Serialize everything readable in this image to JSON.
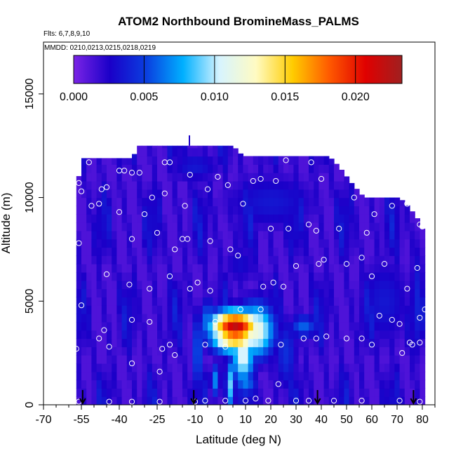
{
  "chart_data": {
    "type": "heatmap",
    "title": "ATOM2 Northbound BromineMass_PALMS",
    "flights_label": "Flts: 6,7,8,9,10",
    "dates_label": "MMDD: 0210,0213,0215,0218,0219",
    "xlabel": "Latitude (deg N)",
    "ylabel": "Altitude (m)",
    "xlim": [
      -70,
      85
    ],
    "ylim": [
      0,
      17500
    ],
    "x_ticks": [
      -70,
      -55,
      -40,
      -25,
      -10,
      0,
      10,
      20,
      30,
      40,
      50,
      60,
      70,
      80
    ],
    "y_ticks": [
      0,
      5000,
      10000,
      15000
    ],
    "colorbar": {
      "range": [
        0,
        0.0233
      ],
      "ticks": [
        0.0,
        0.005,
        0.01,
        0.015,
        0.02
      ],
      "tick_labels": [
        "0.000",
        "0.005",
        "0.010",
        "0.015",
        "0.020"
      ],
      "colors": [
        "#7b24e6",
        "#1a00c8",
        "#0a3fe0",
        "#00b0ff",
        "#d7f4ff",
        "#fffbc2",
        "#ffcc00",
        "#ff5a00",
        "#e00000",
        "#a02020"
      ]
    },
    "legend": "none",
    "grid": false,
    "field": {
      "background_value": 0.0012,
      "top_boundary": [
        {
          "lat": -57,
          "alt": 10600
        },
        {
          "lat": -54,
          "alt": 11900
        },
        {
          "lat": -35,
          "alt": 11900
        },
        {
          "lat": -32,
          "alt": 12500
        },
        {
          "lat": 5,
          "alt": 12500
        },
        {
          "lat": 9,
          "alt": 12000
        },
        {
          "lat": 43,
          "alt": 12000
        },
        {
          "lat": 47,
          "alt": 11500
        },
        {
          "lat": 52,
          "alt": 10700
        },
        {
          "lat": 57,
          "alt": 10000
        },
        {
          "lat": 71,
          "alt": 10000
        },
        {
          "lat": 75,
          "alt": 9500
        },
        {
          "lat": 78,
          "alt": 9000
        },
        {
          "lat": 80,
          "alt": 8500
        }
      ],
      "features": [
        {
          "lat": 6,
          "alt": 3800,
          "dlat": 10,
          "dalt": 800,
          "value": 0.022
        },
        {
          "lat": 6,
          "alt": 3400,
          "dlat": 10,
          "dalt": 900,
          "value": 0.018
        },
        {
          "lat": 14,
          "alt": 3600,
          "dlat": 8,
          "dalt": 1400,
          "value": 0.012
        },
        {
          "lat": 9,
          "alt": 2400,
          "dlat": 5,
          "dalt": 1500,
          "value": 0.011
        },
        {
          "lat": 4,
          "alt": 1000,
          "dlat": 2,
          "dalt": 1400,
          "value": 0.009
        },
        {
          "lat": -5,
          "alt": 4000,
          "dlat": 3,
          "dalt": 1200,
          "value": 0.007
        },
        {
          "lat": -9,
          "alt": 2600,
          "dlat": 2.5,
          "dalt": 2200,
          "value": 0.006
        },
        {
          "lat": 33,
          "alt": 3800,
          "dlat": 6,
          "dalt": 600,
          "value": 0.006
        },
        {
          "lat": 26,
          "alt": 2500,
          "dlat": 5,
          "dalt": 2000,
          "value": 0.0045
        },
        {
          "lat": -10,
          "alt": 11500,
          "dlat": 12,
          "dalt": 900,
          "value": 0.0035
        },
        {
          "lat": 20,
          "alt": 9800,
          "dlat": 22,
          "dalt": 1600,
          "value": 0.0035
        },
        {
          "lat": 8,
          "alt": 6800,
          "dlat": 8,
          "dalt": 1200,
          "value": 0.003
        },
        {
          "lat": 65,
          "alt": 5000,
          "dlat": 12,
          "dalt": 2500,
          "value": 0.0035
        },
        {
          "lat": 78,
          "alt": 5000,
          "dlat": 3,
          "dalt": 3500,
          "value": 0.004
        },
        {
          "lat": -62,
          "alt": 8500,
          "dlat": 4,
          "dalt": 2500,
          "value": 0.003
        },
        {
          "lat": 10,
          "alt": 1000,
          "dlat": 5,
          "dalt": 600,
          "value": 0.0065
        },
        {
          "lat": -2,
          "alt": 1200,
          "dlat": 2,
          "dalt": 900,
          "value": 0.007
        }
      ]
    },
    "sample_points": [
      [
        -66,
        10100
      ],
      [
        -63,
        10500
      ],
      [
        -65,
        11000
      ],
      [
        -56,
        10700
      ],
      [
        -52,
        11700
      ],
      [
        -48,
        9700
      ],
      [
        -47,
        10400
      ],
      [
        -45,
        10500
      ],
      [
        -40,
        11300
      ],
      [
        -38,
        11300
      ],
      [
        -35,
        11200
      ],
      [
        -32,
        11200
      ],
      [
        -22,
        11700
      ],
      [
        -20,
        11700
      ],
      [
        -14,
        9600
      ],
      [
        -5,
        10400
      ],
      [
        -15,
        8000
      ],
      [
        -25,
        8300
      ],
      [
        -35,
        8000
      ],
      [
        -56,
        7800
      ],
      [
        -62,
        7800
      ],
      [
        -67,
        6400
      ],
      [
        -51,
        9600
      ],
      [
        -30,
        9200
      ],
      [
        -4,
        7900
      ],
      [
        9,
        9700
      ],
      [
        13,
        10800
      ],
      [
        16,
        10900
      ],
      [
        22,
        10800
      ],
      [
        26,
        11800
      ],
      [
        36,
        11700
      ],
      [
        40,
        10900
      ],
      [
        53,
        10000
      ],
      [
        20,
        8500
      ],
      [
        27,
        8500
      ],
      [
        35,
        8700
      ],
      [
        38,
        8400
      ],
      [
        47,
        8500
      ],
      [
        58,
        8300
      ],
      [
        61,
        9200
      ],
      [
        68,
        9600
      ],
      [
        74,
        9700
      ],
      [
        79,
        8700
      ],
      [
        -45,
        6300
      ],
      [
        -36,
        5800
      ],
      [
        -28,
        5600
      ],
      [
        -20,
        6200
      ],
      [
        -12,
        5600
      ],
      [
        -9,
        5900
      ],
      [
        -4,
        5500
      ],
      [
        4,
        7500
      ],
      [
        7,
        7200
      ],
      [
        17,
        5700
      ],
      [
        21,
        5900
      ],
      [
        25,
        5700
      ],
      [
        30,
        6700
      ],
      [
        39,
        6800
      ],
      [
        41,
        7000
      ],
      [
        50,
        6800
      ],
      [
        56,
        7100
      ],
      [
        60,
        6200
      ],
      [
        65,
        6800
      ],
      [
        74,
        5600
      ],
      [
        78,
        6600
      ],
      [
        80,
        8600
      ],
      [
        -55,
        4800
      ],
      [
        -46,
        3600
      ],
      [
        -35,
        4100
      ],
      [
        -28,
        4000
      ],
      [
        -23,
        2700
      ],
      [
        -20,
        2900
      ],
      [
        -18,
        2400
      ],
      [
        -6,
        2900
      ],
      [
        -2,
        4000
      ],
      [
        2,
        2800
      ],
      [
        8,
        4600
      ],
      [
        16,
        4600
      ],
      [
        24,
        2900
      ],
      [
        33,
        3200
      ],
      [
        38,
        3200
      ],
      [
        42,
        3300
      ],
      [
        50,
        3200
      ],
      [
        56,
        3200
      ],
      [
        60,
        2900
      ],
      [
        63,
        4300
      ],
      [
        68,
        4100
      ],
      [
        71,
        3900
      ],
      [
        75,
        3000
      ],
      [
        79,
        3000
      ],
      [
        79,
        4200
      ],
      [
        81,
        4600
      ],
      [
        -63,
        2800
      ],
      [
        -60,
        3000
      ],
      [
        -57,
        2700
      ],
      [
        -48,
        3200
      ],
      [
        -44,
        2800
      ],
      [
        -35,
        2000
      ],
      [
        -24,
        1600
      ],
      [
        2,
        200
      ],
      [
        10,
        200
      ],
      [
        14,
        300
      ],
      [
        19,
        200
      ],
      [
        23,
        1000
      ],
      [
        30,
        200
      ],
      [
        35,
        200
      ],
      [
        45,
        200
      ],
      [
        56,
        200
      ],
      [
        -64,
        150
      ],
      [
        -56,
        150
      ],
      [
        -44,
        150
      ],
      [
        -35,
        150
      ],
      [
        -24,
        150
      ],
      [
        -10,
        150
      ],
      [
        -6,
        200
      ],
      [
        72,
        2500
      ],
      [
        76,
        2900
      ],
      [
        71,
        200
      ],
      [
        79,
        150
      ],
      [
        -13,
        8000
      ],
      [
        -18,
        7500
      ],
      [
        -40,
        9300
      ],
      [
        -27,
        10000
      ],
      [
        -22,
        10200
      ],
      [
        3,
        10600
      ],
      [
        -1,
        11000
      ],
      [
        -12,
        11100
      ],
      [
        -55,
        10300
      ]
    ],
    "flight_markers": [
      -54.5,
      -10.5,
      38.5,
      76.5
    ]
  }
}
